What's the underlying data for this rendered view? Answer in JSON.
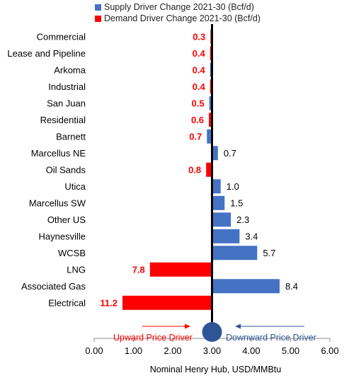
{
  "legend": {
    "supply_label": "Supply Driver Change 2021-30 (Bcf/d)",
    "demand_label": "Demand Driver Change 2021-30 (Bcf/d)"
  },
  "chart_data": {
    "type": "bar",
    "orientation": "horizontal",
    "xlabel": "Nominal Henry Hub, USD/MMBtu",
    "ylabel": "",
    "xlim": [
      0,
      6
    ],
    "xticks": [
      "0.00",
      "1.00",
      "2.00",
      "3.00",
      "4.00",
      "5.00",
      "6.00"
    ],
    "baseline": 3.0,
    "grid": false,
    "legend_position": "top",
    "colors": {
      "supply": "#4472C4",
      "demand": "#FF0000",
      "baseline": "#000000",
      "marker": "#2F5597",
      "upward_arrow": "#FF0000",
      "downward_arrow": "#2F5597"
    },
    "categories": [
      "Commercial",
      "Lease and Pipeline",
      "Arkoma",
      "Industrial",
      "San Juan",
      "Residential",
      "Barnett",
      "Marcellus NE",
      "Oil Sands",
      "Utica",
      "Marcellus SW",
      "Other US",
      "Haynesville",
      "WCSB",
      "LNG",
      "Associated Gas",
      "Electrical"
    ],
    "bars": [
      {
        "category": "Commercial",
        "kind": "demand",
        "label": "0.3",
        "start": 2.96,
        "end": 3.0
      },
      {
        "category": "Lease and Pipeline",
        "kind": "demand",
        "label": "0.4",
        "start": 2.95,
        "end": 3.0
      },
      {
        "category": "Arkoma",
        "kind": "supply",
        "label": "0.4",
        "start": 2.95,
        "end": 3.0
      },
      {
        "category": "Industrial",
        "kind": "demand",
        "label": "0.4",
        "start": 2.95,
        "end": 3.0
      },
      {
        "category": "San Juan",
        "kind": "supply",
        "label": "0.5",
        "start": 2.93,
        "end": 3.0
      },
      {
        "category": "Residential",
        "kind": "demand",
        "label": "0.6",
        "start": 2.92,
        "end": 3.0
      },
      {
        "category": "Barnett",
        "kind": "supply",
        "label": "0.7",
        "start": 2.87,
        "end": 3.0
      },
      {
        "category": "Marcellus NE",
        "kind": "supply",
        "label": "0.7",
        "start": 3.0,
        "end": 3.15
      },
      {
        "category": "Oil Sands",
        "kind": "demand",
        "label": "0.8",
        "start": 2.85,
        "end": 3.0
      },
      {
        "category": "Utica",
        "kind": "supply",
        "label": "1.0",
        "start": 3.0,
        "end": 3.22
      },
      {
        "category": "Marcellus SW",
        "kind": "supply",
        "label": "1.5",
        "start": 3.0,
        "end": 3.32
      },
      {
        "category": "Other US",
        "kind": "supply",
        "label": "2.3",
        "start": 3.0,
        "end": 3.48
      },
      {
        "category": "Haynesville",
        "kind": "supply",
        "label": "3.4",
        "start": 3.0,
        "end": 3.7
      },
      {
        "category": "WCSB",
        "kind": "supply",
        "label": "5.7",
        "start": 3.0,
        "end": 4.15
      },
      {
        "category": "LNG",
        "kind": "demand",
        "label": "7.8",
        "start": 1.42,
        "end": 3.0
      },
      {
        "category": "Associated Gas",
        "kind": "supply",
        "label": "8.4",
        "start": 3.0,
        "end": 4.72
      },
      {
        "category": "Electrical",
        "kind": "demand",
        "label": "11.2",
        "start": 0.72,
        "end": 3.0
      }
    ],
    "annotations": {
      "upward": "Upward Price Driver",
      "downward": "Downward Price Driver"
    }
  }
}
